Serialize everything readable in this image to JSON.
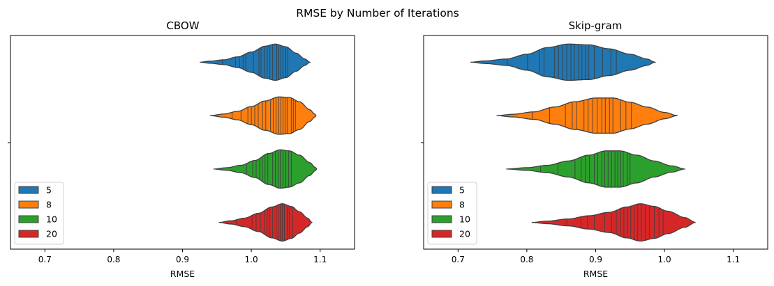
{
  "figure": {
    "suptitle": "RMSE by Number of Iterations"
  },
  "chart_data": [
    {
      "type": "violin",
      "orientation": "horizontal",
      "title": "CBOW",
      "xlabel": "RMSE",
      "ylabel": "",
      "xlim": [
        0.65,
        1.15
      ],
      "xticks": [
        0.7,
        0.8,
        0.9,
        1.0,
        1.1
      ],
      "xtick_labels": [
        "0.7",
        "0.8",
        "0.9",
        "1.0",
        "1.1"
      ],
      "legend_position": "lower left",
      "inner": "stick",
      "series": [
        {
          "name": "5",
          "color": "#1f77b4",
          "density": [
            [
              0.925,
              0.0
            ],
            [
              0.94,
              0.04
            ],
            [
              0.96,
              0.09
            ],
            [
              0.98,
              0.2
            ],
            [
              1.0,
              0.38
            ],
            [
              1.02,
              0.6
            ],
            [
              1.035,
              0.68
            ],
            [
              1.05,
              0.58
            ],
            [
              1.065,
              0.34
            ],
            [
              1.078,
              0.12
            ],
            [
              1.085,
              0.0
            ]
          ],
          "values": [
            0.958,
            0.977,
            0.983,
            0.988,
            0.992,
            1.003,
            1.011,
            1.014,
            1.019,
            1.023,
            1.027,
            1.031,
            1.037,
            1.04,
            1.043,
            1.046,
            1.05,
            1.053
          ]
        },
        {
          "name": "8",
          "color": "#ff7f0e",
          "density": [
            [
              0.94,
              0.0
            ],
            [
              0.96,
              0.06
            ],
            [
              0.98,
              0.16
            ],
            [
              1.0,
              0.34
            ],
            [
              1.02,
              0.55
            ],
            [
              1.04,
              0.7
            ],
            [
              1.055,
              0.68
            ],
            [
              1.07,
              0.52
            ],
            [
              1.085,
              0.22
            ],
            [
              1.092,
              0.06
            ],
            [
              1.094,
              0.0
            ]
          ],
          "values": [
            0.972,
            0.985,
            0.995,
            1.0,
            1.005,
            1.01,
            1.016,
            1.021,
            1.028,
            1.032,
            1.036,
            1.04,
            1.043,
            1.046,
            1.049,
            1.052,
            1.058,
            1.061,
            1.064
          ]
        },
        {
          "name": "10",
          "color": "#2ca02c",
          "density": [
            [
              0.945,
              0.0
            ],
            [
              0.965,
              0.05
            ],
            [
              0.985,
              0.14
            ],
            [
              1.005,
              0.32
            ],
            [
              1.025,
              0.58
            ],
            [
              1.042,
              0.72
            ],
            [
              1.055,
              0.68
            ],
            [
              1.07,
              0.52
            ],
            [
              1.085,
              0.24
            ],
            [
              1.093,
              0.06
            ],
            [
              1.095,
              0.0
            ]
          ],
          "values": [
            0.993,
            1.002,
            1.007,
            1.012,
            1.016,
            1.02,
            1.024,
            1.031,
            1.035,
            1.039,
            1.042,
            1.046,
            1.05,
            1.054,
            1.058
          ]
        },
        {
          "name": "20",
          "color": "#d62728",
          "density": [
            [
              0.953,
              0.0
            ],
            [
              0.97,
              0.06
            ],
            [
              0.99,
              0.16
            ],
            [
              1.01,
              0.34
            ],
            [
              1.03,
              0.58
            ],
            [
              1.045,
              0.7
            ],
            [
              1.058,
              0.6
            ],
            [
              1.07,
              0.4
            ],
            [
              1.082,
              0.16
            ],
            [
              1.088,
              0.0
            ]
          ],
          "values": [
            0.978,
            1.001,
            1.007,
            1.013,
            1.019,
            1.023,
            1.027,
            1.031,
            1.036,
            1.039,
            1.042,
            1.045,
            1.048,
            1.052,
            1.055,
            1.06
          ]
        }
      ]
    },
    {
      "type": "violin",
      "orientation": "horizontal",
      "title": "Skip-gram",
      "xlabel": "RMSE",
      "ylabel": "",
      "xlim": [
        0.65,
        1.15
      ],
      "xticks": [
        0.7,
        0.8,
        0.9,
        1.0,
        1.1
      ],
      "xtick_labels": [
        "0.7",
        "0.8",
        "0.9",
        "1.0",
        "1.1"
      ],
      "legend_position": "lower left",
      "inner": "stick",
      "series": [
        {
          "name": "5",
          "color": "#1f77b4",
          "density": [
            [
              0.718,
              0.0
            ],
            [
              0.74,
              0.05
            ],
            [
              0.77,
              0.12
            ],
            [
              0.8,
              0.3
            ],
            [
              0.83,
              0.55
            ],
            [
              0.86,
              0.68
            ],
            [
              0.89,
              0.65
            ],
            [
              0.92,
              0.5
            ],
            [
              0.95,
              0.3
            ],
            [
              0.975,
              0.12
            ],
            [
              0.986,
              0.0
            ]
          ],
          "values": [
            0.772,
            0.801,
            0.818,
            0.825,
            0.84,
            0.846,
            0.852,
            0.858,
            0.864,
            0.869,
            0.875,
            0.88,
            0.885,
            0.89,
            0.898,
            0.91,
            0.922,
            0.93
          ]
        },
        {
          "name": "8",
          "color": "#ff7f0e",
          "density": [
            [
              0.756,
              0.0
            ],
            [
              0.78,
              0.05
            ],
            [
              0.81,
              0.14
            ],
            [
              0.84,
              0.32
            ],
            [
              0.87,
              0.52
            ],
            [
              0.9,
              0.66
            ],
            [
              0.925,
              0.66
            ],
            [
              0.95,
              0.5
            ],
            [
              0.975,
              0.32
            ],
            [
              1.0,
              0.12
            ],
            [
              1.019,
              0.0
            ]
          ],
          "values": [
            0.808,
            0.833,
            0.856,
            0.866,
            0.872,
            0.883,
            0.889,
            0.896,
            0.902,
            0.909,
            0.914,
            0.92,
            0.925,
            0.936,
            0.944,
            0.952
          ]
        },
        {
          "name": "10",
          "color": "#2ca02c",
          "density": [
            [
              0.77,
              0.0
            ],
            [
              0.8,
              0.05
            ],
            [
              0.83,
              0.14
            ],
            [
              0.86,
              0.3
            ],
            [
              0.89,
              0.52
            ],
            [
              0.915,
              0.68
            ],
            [
              0.935,
              0.68
            ],
            [
              0.96,
              0.52
            ],
            [
              0.985,
              0.3
            ],
            [
              1.01,
              0.12
            ],
            [
              1.03,
              0.0
            ]
          ],
          "values": [
            0.82,
            0.845,
            0.87,
            0.879,
            0.885,
            0.891,
            0.898,
            0.903,
            0.909,
            0.913,
            0.918,
            0.923,
            0.928,
            0.932,
            0.936,
            0.94,
            0.946,
            0.95
          ]
        },
        {
          "name": "20",
          "color": "#d62728",
          "density": [
            [
              0.807,
              0.0
            ],
            [
              0.83,
              0.05
            ],
            [
              0.86,
              0.13
            ],
            [
              0.89,
              0.25
            ],
            [
              0.92,
              0.38
            ],
            [
              0.945,
              0.58
            ],
            [
              0.965,
              0.7
            ],
            [
              0.985,
              0.6
            ],
            [
              1.005,
              0.42
            ],
            [
              1.03,
              0.18
            ],
            [
              1.045,
              0.0
            ]
          ],
          "values": [
            0.858,
            0.879,
            0.888,
            0.898,
            0.913,
            0.923,
            0.93,
            0.936,
            0.941,
            0.946,
            0.951,
            0.956,
            0.961,
            0.966,
            0.972,
            0.978,
            0.985,
            0.992,
            0.998
          ]
        }
      ]
    }
  ]
}
